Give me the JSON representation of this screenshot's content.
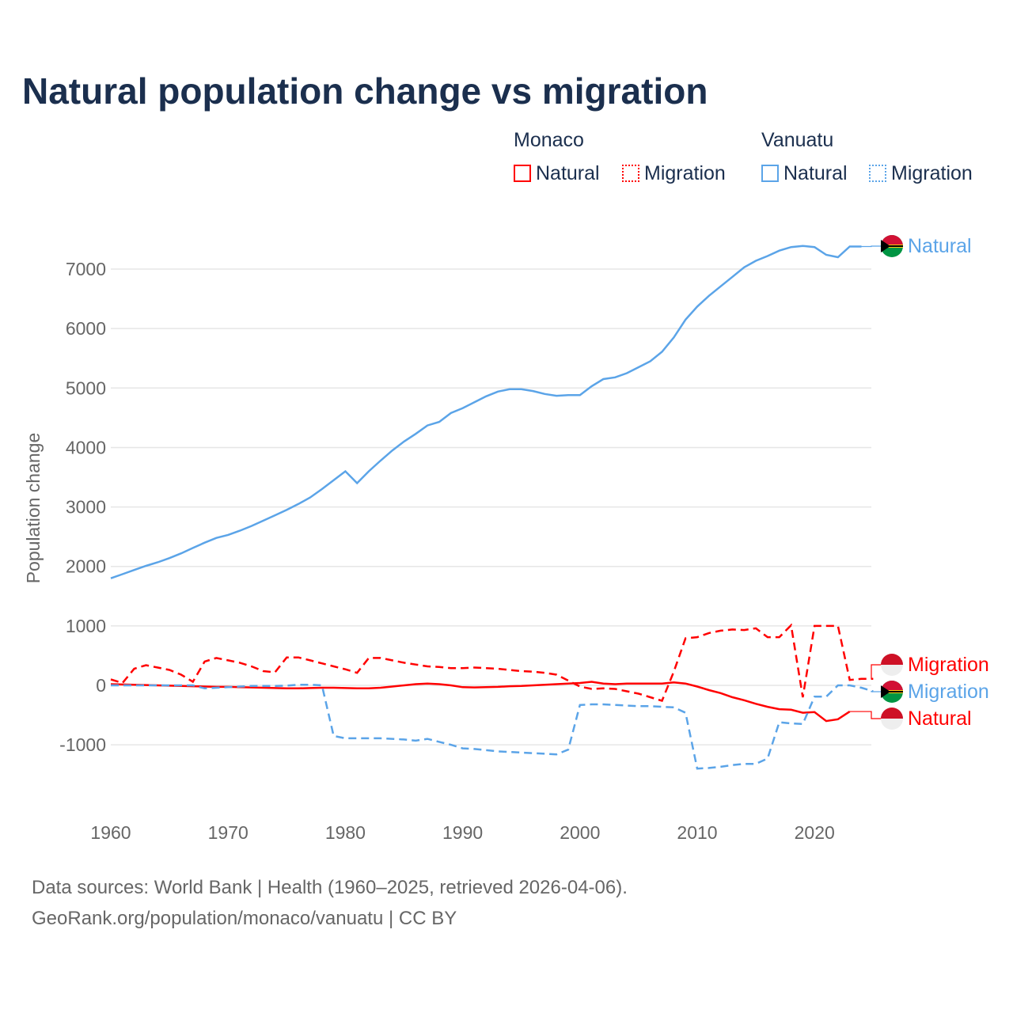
{
  "chart_data": {
    "type": "line",
    "title": "Natural population change vs migration",
    "ylabel": "Population change",
    "xlabel": "",
    "ylim": [
      -1800,
      7800
    ],
    "xlim": [
      1960,
      2025
    ],
    "yticks": [
      -1000,
      0,
      1000,
      2000,
      3000,
      4000,
      5000,
      6000,
      7000
    ],
    "xticks": [
      1960,
      1970,
      1980,
      1990,
      2000,
      2010,
      2020
    ],
    "grid": true,
    "legend": {
      "placement": "top-right",
      "groups": [
        {
          "name": "Monaco",
          "items": [
            "Natural",
            "Migration"
          ]
        },
        {
          "name": "Vanuatu",
          "items": [
            "Natural",
            "Migration"
          ]
        }
      ]
    },
    "series": [
      {
        "name": "Vanuatu Natural",
        "country": "Vanuatu",
        "kind": "Natural",
        "color": "#5ba4e8",
        "dash": false,
        "start": 1960,
        "values": [
          1800,
          1870,
          1940,
          2010,
          2070,
          2140,
          2220,
          2310,
          2400,
          2480,
          2530,
          2600,
          2680,
          2770,
          2860,
          2950,
          3050,
          3160,
          3300,
          3450,
          3600,
          3400,
          3600,
          3780,
          3950,
          4100,
          4230,
          4370,
          4430,
          4580,
          4660,
          4760,
          4860,
          4940,
          4980,
          4980,
          4950,
          4900,
          4870,
          4880,
          4880,
          5030,
          5150,
          5180,
          5250,
          5350,
          5450,
          5610,
          5850,
          6150,
          6370,
          6550,
          6710,
          6870,
          7030,
          7140,
          7220,
          7310,
          7370,
          7390,
          7370,
          7240,
          7200,
          7380,
          7380
        ]
      },
      {
        "name": "Monaco Natural",
        "country": "Monaco",
        "kind": "Natural",
        "color": "#ff0000",
        "dash": false,
        "start": 1960,
        "values": [
          20,
          15,
          10,
          5,
          0,
          -5,
          -10,
          -15,
          -20,
          -25,
          -25,
          -30,
          -35,
          -40,
          -45,
          -50,
          -50,
          -45,
          -40,
          -40,
          -45,
          -50,
          -50,
          -40,
          -20,
          0,
          20,
          30,
          20,
          0,
          -30,
          -35,
          -30,
          -25,
          -15,
          -10,
          0,
          10,
          20,
          30,
          40,
          60,
          30,
          20,
          30,
          30,
          30,
          30,
          50,
          30,
          -20,
          -80,
          -130,
          -200,
          -250,
          -310,
          -360,
          -400,
          -410,
          -460,
          -450,
          -600,
          -570,
          -440
        ]
      },
      {
        "name": "Monaco Migration",
        "country": "Monaco",
        "kind": "Migration",
        "color": "#ff0000",
        "dash": true,
        "start": 1960,
        "values": [
          100,
          40,
          280,
          340,
          300,
          260,
          180,
          60,
          400,
          460,
          420,
          380,
          320,
          240,
          220,
          470,
          470,
          420,
          370,
          320,
          270,
          210,
          460,
          460,
          420,
          380,
          350,
          320,
          310,
          290,
          290,
          300,
          290,
          280,
          260,
          240,
          230,
          210,
          180,
          80,
          -20,
          -60,
          -50,
          -60,
          -100,
          -140,
          -200,
          -260,
          230,
          790,
          810,
          880,
          920,
          940,
          930,
          960,
          810,
          810,
          1010,
          -200,
          1000,
          1000,
          1000,
          90,
          110,
          110
        ]
      },
      {
        "name": "Vanuatu Migration",
        "country": "Vanuatu",
        "kind": "Migration",
        "color": "#5ba4e8",
        "dash": true,
        "start": 1960,
        "values": [
          0,
          0,
          0,
          0,
          0,
          0,
          0,
          0,
          -50,
          -40,
          -30,
          -20,
          -10,
          -10,
          -10,
          -5,
          10,
          10,
          0,
          -850,
          -890,
          -890,
          -890,
          -890,
          -900,
          -910,
          -930,
          -900,
          -950,
          -1000,
          -1060,
          -1070,
          -1090,
          -1110,
          -1120,
          -1130,
          -1140,
          -1150,
          -1160,
          -1080,
          -330,
          -320,
          -320,
          -330,
          -340,
          -350,
          -350,
          -360,
          -370,
          -460,
          -1400,
          -1390,
          -1370,
          -1340,
          -1320,
          -1320,
          -1230,
          -620,
          -640,
          -650,
          -190,
          -190,
          0,
          0,
          -40,
          -100
        ]
      }
    ],
    "end_labels": [
      {
        "text": "Natural",
        "series": 0,
        "flag": "vanuatu"
      },
      {
        "text": "Migration",
        "series": 2,
        "flag": "monaco"
      },
      {
        "text": "Migration",
        "series": 3,
        "flag": "vanuatu"
      },
      {
        "text": "Natural",
        "series": 1,
        "flag": "monaco"
      }
    ]
  },
  "legend": {
    "monaco": "Monaco",
    "vanuatu": "Vanuatu",
    "natural": "Natural",
    "migration": "Migration"
  },
  "source": {
    "line1": "Data sources: World Bank | Health (1960–2025, retrieved 2026-04-06).",
    "line2": "GeoRank.org/population/monaco/vanuatu | CC BY"
  },
  "colors": {
    "monaco": "#ff0000",
    "vanuatu": "#5ba4e8",
    "title": "#1b2f4e"
  }
}
